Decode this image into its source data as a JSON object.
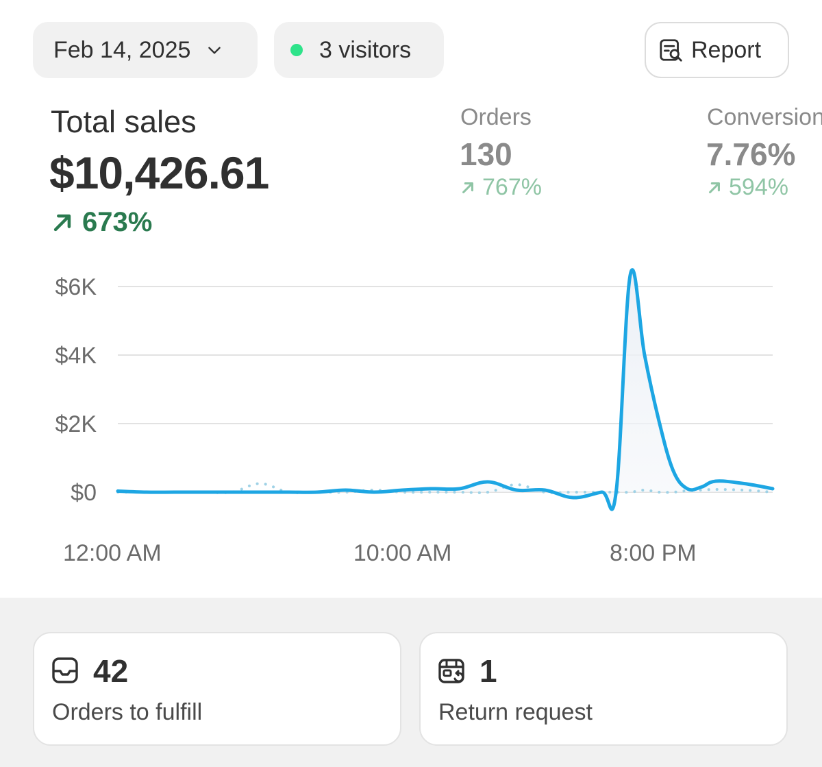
{
  "header": {
    "date_label": "Feb 14, 2025",
    "visitors_label": "3 visitors",
    "report_label": "Report"
  },
  "metrics": {
    "total_sales": {
      "label": "Total sales",
      "value": "$10,426.61",
      "delta": "673%"
    },
    "orders": {
      "label": "Orders",
      "value": "130",
      "delta": "767%"
    },
    "conversion": {
      "label": "Conversion",
      "value": "7.76%",
      "delta": "594%"
    }
  },
  "chart_data": {
    "type": "line",
    "title": "",
    "xlabel": "",
    "ylabel": "",
    "ylim": [
      0,
      6000
    ],
    "yticks": [
      "$6K",
      "$4K",
      "$2K",
      "$0"
    ],
    "xticks": [
      "12:00 AM",
      "10:00 AM",
      "8:00 PM"
    ],
    "grid": true,
    "x_hours": [
      0,
      1,
      2,
      3,
      4,
      5,
      6,
      7,
      8,
      9,
      10,
      11,
      12,
      13,
      14,
      15,
      16,
      17,
      17.5,
      18,
      18.5,
      19,
      19.5,
      20,
      20.5,
      21,
      22,
      23
    ],
    "series": [
      {
        "style": "solid",
        "color": "#1da6e3",
        "values": [
          30,
          0,
          0,
          0,
          0,
          0,
          0,
          0,
          60,
          0,
          60,
          100,
          100,
          300,
          60,
          60,
          -160,
          0,
          0,
          6350,
          4000,
          2100,
          640,
          100,
          150,
          320,
          250,
          100
        ]
      },
      {
        "style": "dotted",
        "color": "#9fd2e6",
        "values": [
          0,
          0,
          0,
          0,
          0,
          250,
          0,
          0,
          0,
          60,
          0,
          0,
          0,
          0,
          220,
          0,
          0,
          0,
          0,
          0,
          60,
          0,
          0,
          40,
          60,
          80,
          60,
          0
        ]
      }
    ]
  },
  "cards": [
    {
      "icon": "inbox-icon",
      "value": "42",
      "label": "Orders to fulfill"
    },
    {
      "icon": "return-box-icon",
      "value": "1",
      "label": "Return request"
    }
  ],
  "colors": {
    "accent": "#1da6e3",
    "positive": "#2a7a4f",
    "online_dot": "#2ee38a"
  }
}
